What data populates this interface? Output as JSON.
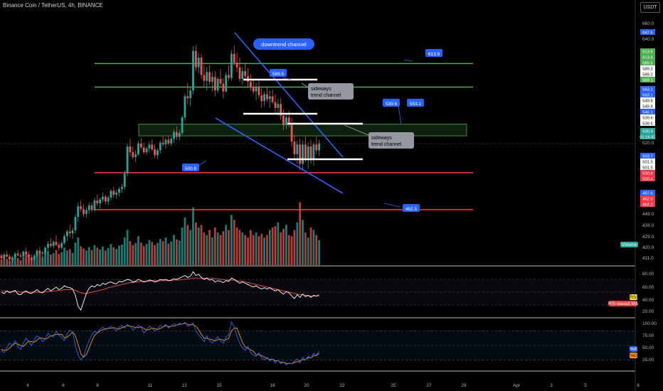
{
  "header": {
    "symbol_title": "Binance Coin / TetherUS, 4h, BINANCE",
    "currency_button": "USDT"
  },
  "colors": {
    "background": "#000000",
    "up": "#26a69a",
    "down": "#ef5350",
    "green_line": "#4caf50",
    "red_line": "#f23645",
    "blue_line": "#2962ff",
    "label_blue": "#2962ff",
    "rsi_line": "#ffffff",
    "rsi_ma": "#ef5350",
    "stoch_k": "#2962ff",
    "stoch_d": "#ff9800"
  },
  "annotations": {
    "downtrend_label": "downtrend channel",
    "sideways_label_1": "sideways trend channel",
    "sideways_label_2": "sideways trend channel",
    "price_tags": [
      "613.9",
      "589.5",
      "539.6",
      "553.1",
      "500.8",
      "462.5"
    ]
  },
  "right_axis": {
    "ticks": [
      "660.0",
      "640.0",
      "520.0",
      "449.0",
      "439.0",
      "429.0",
      "420.0",
      "411.0"
    ],
    "value_tags": [
      {
        "text": "647.6",
        "color": "#2962ff"
      },
      {
        "text": "613.9",
        "color": "#4caf50"
      },
      {
        "text": "613.4",
        "color": "#4caf50"
      },
      {
        "text": "589.5",
        "color": "#4caf50"
      },
      {
        "text": "589.2",
        "color": "#ffffff"
      },
      {
        "text": "589.2",
        "color": "#ffffff"
      },
      {
        "text": "589.1",
        "color": "#4caf50"
      },
      {
        "text": "563.1",
        "color": "#2962ff"
      },
      {
        "text": "563.1",
        "color": "#2962ff"
      },
      {
        "text": "549.8",
        "color": "#ffffff"
      },
      {
        "text": "549.8",
        "color": "#ffffff"
      },
      {
        "text": "546.1",
        "color": "#2962ff"
      },
      {
        "text": "539.6",
        "color": "#ffffff"
      },
      {
        "text": "539.6",
        "color": "#ffffff"
      },
      {
        "text": "530.9",
        "color": "#26a69a"
      },
      {
        "text": "01:16:41",
        "color": "#26a69a"
      },
      {
        "text": "503.7",
        "color": "#2962ff"
      },
      {
        "text": "501.5",
        "color": "#ffffff"
      },
      {
        "text": "501.5",
        "color": "#ffffff"
      },
      {
        "text": "500.8",
        "color": "#f23645"
      },
      {
        "text": "500.4",
        "color": "#f23645"
      },
      {
        "text": "467.6",
        "color": "#2962ff"
      },
      {
        "text": "462.5",
        "color": "#f23645"
      },
      {
        "text": "462.2",
        "color": "#f23645"
      }
    ],
    "volume_label": "Volume"
  },
  "rsi_panel": {
    "ticks": [
      "80.00",
      "60.00",
      "40.00",
      "20.00"
    ],
    "rsi_tag": "RSI",
    "ma_tag": "RSI-based MA"
  },
  "stoch_panel": {
    "ticks": [
      "100.00",
      "75.00",
      "50.00",
      "25.00"
    ],
    "k_tag": "%K",
    "d_tag": "%D"
  },
  "time_axis": {
    "labels": [
      "4",
      "6",
      "8",
      "11",
      "13",
      "15",
      "18",
      "20",
      "22",
      "25",
      "27",
      "29",
      "Apr",
      "3",
      "5",
      "8"
    ]
  },
  "chart_data": {
    "type": "candlestick",
    "title": "Binance Coin / TetherUS, 4h, BINANCE",
    "ylim": [
      405,
      665
    ],
    "horizontal_levels": {
      "green": [
        613.9,
        589.5
      ],
      "red": [
        500.8,
        462.5
      ],
      "white_sideways": [
        589.5,
        549.8,
        539.6,
        501.5
      ],
      "zone": [
        551,
        539
      ]
    },
    "candles": [
      [
        415,
        417,
        410,
        412
      ],
      [
        412,
        418,
        410,
        416
      ],
      [
        416,
        420,
        413,
        414
      ],
      [
        414,
        416,
        409,
        411
      ],
      [
        411,
        415,
        408,
        413
      ],
      [
        413,
        419,
        411,
        417
      ],
      [
        417,
        421,
        414,
        415
      ],
      [
        415,
        418,
        412,
        414
      ],
      [
        414,
        420,
        413,
        419
      ],
      [
        419,
        423,
        415,
        416
      ],
      [
        416,
        419,
        411,
        413
      ],
      [
        413,
        416,
        409,
        411
      ],
      [
        411,
        417,
        410,
        415
      ],
      [
        415,
        422,
        413,
        420
      ],
      [
        420,
        424,
        416,
        417
      ],
      [
        417,
        420,
        413,
        418
      ],
      [
        418,
        425,
        416,
        423
      ],
      [
        423,
        430,
        420,
        427
      ],
      [
        427,
        433,
        423,
        425
      ],
      [
        425,
        431,
        422,
        429
      ],
      [
        429,
        436,
        425,
        426
      ],
      [
        426,
        429,
        420,
        423
      ],
      [
        423,
        430,
        421,
        428
      ],
      [
        428,
        437,
        426,
        435
      ],
      [
        435,
        442,
        430,
        440
      ],
      [
        440,
        447,
        434,
        438
      ],
      [
        438,
        444,
        432,
        441
      ],
      [
        441,
        458,
        438,
        455
      ],
      [
        455,
        470,
        450,
        466
      ],
      [
        466,
        472,
        460,
        463
      ],
      [
        463,
        468,
        455,
        458
      ],
      [
        458,
        465,
        454,
        462
      ],
      [
        462,
        470,
        458,
        467
      ],
      [
        467,
        470,
        460,
        462
      ],
      [
        462,
        475,
        460,
        472
      ],
      [
        472,
        478,
        466,
        469
      ],
      [
        469,
        475,
        464,
        473
      ],
      [
        473,
        480,
        470,
        476
      ],
      [
        476,
        478,
        468,
        471
      ],
      [
        471,
        477,
        467,
        475
      ],
      [
        475,
        484,
        472,
        482
      ],
      [
        482,
        486,
        475,
        478
      ],
      [
        478,
        483,
        474,
        480
      ],
      [
        480,
        486,
        476,
        484
      ],
      [
        484,
        489,
        480,
        486
      ],
      [
        486,
        503,
        483,
        500
      ],
      [
        500,
        531,
        497,
        528
      ],
      [
        528,
        536,
        518,
        522
      ],
      [
        522,
        528,
        515,
        517
      ],
      [
        517,
        524,
        512,
        520
      ],
      [
        520,
        534,
        518,
        531
      ],
      [
        531,
        537,
        525,
        527
      ],
      [
        527,
        532,
        520,
        522
      ],
      [
        522,
        528,
        519,
        526
      ],
      [
        526,
        533,
        522,
        530
      ],
      [
        530,
        535,
        523,
        525
      ],
      [
        525,
        530,
        516,
        519
      ],
      [
        519,
        526,
        515,
        524
      ],
      [
        524,
        534,
        521,
        532
      ],
      [
        532,
        539,
        528,
        530
      ],
      [
        530,
        537,
        526,
        535
      ],
      [
        535,
        539,
        529,
        531
      ],
      [
        531,
        538,
        528,
        536
      ],
      [
        536,
        546,
        532,
        543
      ],
      [
        543,
        549,
        535,
        538
      ],
      [
        538,
        545,
        534,
        542
      ],
      [
        542,
        560,
        540,
        558
      ],
      [
        558,
        583,
        555,
        580
      ],
      [
        580,
        594,
        572,
        578
      ],
      [
        578,
        590,
        570,
        586
      ],
      [
        586,
        632,
        582,
        627
      ],
      [
        627,
        633,
        606,
        610
      ],
      [
        610,
        625,
        604,
        620
      ],
      [
        620,
        624,
        598,
        602
      ],
      [
        602,
        612,
        590,
        596
      ],
      [
        596,
        610,
        586,
        605
      ],
      [
        605,
        612,
        592,
        595
      ],
      [
        595,
        605,
        585,
        600
      ],
      [
        600,
        606,
        580,
        586
      ],
      [
        586,
        600,
        583,
        598
      ],
      [
        598,
        608,
        590,
        593
      ],
      [
        593,
        599,
        578,
        585
      ],
      [
        585,
        605,
        584,
        602
      ],
      [
        602,
        612,
        596,
        599
      ],
      [
        599,
        628,
        596,
        624
      ],
      [
        624,
        632,
        612,
        615
      ],
      [
        615,
        625,
        605,
        610
      ],
      [
        610,
        620,
        595,
        598
      ],
      [
        598,
        610,
        592,
        606
      ],
      [
        606,
        614,
        598,
        601
      ],
      [
        601,
        609,
        590,
        595
      ],
      [
        595,
        603,
        586,
        590
      ],
      [
        590,
        598,
        582,
        585
      ],
      [
        585,
        594,
        576,
        590
      ],
      [
        590,
        596,
        578,
        581
      ],
      [
        581,
        588,
        568,
        575
      ],
      [
        575,
        585,
        570,
        582
      ],
      [
        582,
        590,
        574,
        577
      ],
      [
        577,
        586,
        568,
        580
      ],
      [
        580,
        587,
        572,
        574
      ],
      [
        574,
        582,
        562,
        568
      ],
      [
        568,
        577,
        560,
        572
      ],
      [
        572,
        578,
        556,
        560
      ],
      [
        560,
        566,
        545,
        550
      ],
      [
        550,
        562,
        546,
        558
      ],
      [
        558,
        565,
        548,
        552
      ],
      [
        552,
        558,
        528,
        533
      ],
      [
        533,
        540,
        513,
        520
      ],
      [
        520,
        534,
        510,
        530
      ],
      [
        530,
        536,
        503,
        510
      ],
      [
        510,
        534,
        503,
        530
      ],
      [
        530,
        538,
        512,
        516
      ],
      [
        516,
        532,
        505,
        528
      ],
      [
        528,
        535,
        510,
        514
      ],
      [
        514,
        532,
        508,
        530
      ],
      [
        530,
        538,
        520,
        524
      ],
      [
        524,
        535,
        518,
        531
      ]
    ],
    "volume": [
      22,
      30,
      25,
      18,
      26,
      35,
      28,
      20,
      32,
      40,
      30,
      24,
      28,
      38,
      45,
      33,
      50,
      56,
      42,
      48,
      60,
      45,
      52,
      70,
      58,
      64,
      49,
      90,
      110,
      75,
      66,
      58,
      72,
      60,
      80,
      70,
      62,
      74,
      58,
      68,
      84,
      71,
      64,
      78,
      82,
      110,
      140,
      96,
      80,
      88,
      115,
      90,
      76,
      84,
      100,
      92,
      80,
      88,
      104,
      96,
      110,
      86,
      94,
      120,
      102,
      98,
      150,
      190,
      160,
      140,
      230,
      170,
      150,
      160,
      130,
      120,
      140,
      110,
      150,
      130,
      120,
      135,
      160,
      140,
      200,
      180,
      150,
      140,
      130,
      120,
      110,
      140,
      120,
      130,
      115,
      125,
      110,
      120,
      140,
      150,
      155,
      170,
      130,
      145,
      160,
      120,
      115,
      140,
      170,
      250,
      180,
      130,
      110,
      150,
      140,
      120,
      100,
      115
    ],
    "rsi": [
      50,
      48,
      52,
      49,
      51,
      53,
      47,
      46,
      50,
      52,
      49,
      48,
      51,
      54,
      50,
      49,
      53,
      56,
      52,
      55,
      58,
      54,
      56,
      60,
      58,
      57,
      55,
      45,
      28,
      22,
      35,
      48,
      56,
      60,
      58,
      62,
      60,
      64,
      62,
      65,
      66,
      64,
      63,
      67,
      66,
      68,
      70,
      69,
      66,
      67,
      70,
      68,
      66,
      67,
      69,
      68,
      66,
      67,
      70,
      69,
      70,
      68,
      69,
      71,
      70,
      72,
      74,
      76,
      73,
      75,
      82,
      76,
      78,
      73,
      70,
      72,
      69,
      70,
      66,
      68,
      67,
      65,
      68,
      67,
      72,
      70,
      67,
      64,
      66,
      64,
      62,
      60,
      58,
      60,
      57,
      55,
      57,
      55,
      57,
      54,
      52,
      54,
      50,
      47,
      51,
      49,
      44,
      40,
      46,
      42,
      47,
      43,
      45,
      42,
      45,
      44,
      46
    ],
    "rsi_ma": [
      52,
      52,
      51,
      51,
      51,
      51,
      51,
      50,
      50,
      50,
      50,
      50,
      50,
      50,
      50,
      50,
      51,
      51,
      51,
      52,
      52,
      53,
      53,
      54,
      54,
      54,
      54,
      53,
      51,
      49,
      48,
      48,
      49,
      50,
      51,
      52,
      53,
      54,
      55,
      57,
      58,
      59,
      60,
      61,
      62,
      63,
      64,
      65,
      65,
      66,
      66,
      67,
      67,
      67,
      67,
      68,
      68,
      68,
      68,
      68,
      68,
      68,
      68,
      69,
      69,
      69,
      70,
      70,
      71,
      71,
      72,
      72,
      72,
      72,
      72,
      72,
      72,
      72,
      71,
      71,
      70,
      70,
      69,
      69,
      69,
      69,
      68,
      67,
      67,
      66,
      65,
      64,
      63,
      62,
      61,
      60,
      59,
      58,
      57,
      56,
      55,
      54,
      53,
      52,
      51,
      50,
      49,
      48,
      47,
      46,
      46,
      45,
      45,
      44,
      44,
      44,
      44
    ],
    "stoch_k": [
      40,
      35,
      45,
      55,
      50,
      60,
      48,
      42,
      55,
      65,
      58,
      50,
      62,
      70,
      66,
      58,
      64,
      75,
      70,
      68,
      80,
      72,
      66,
      60,
      74,
      82,
      78,
      50,
      30,
      20,
      28,
      45,
      60,
      72,
      80,
      76,
      84,
      88,
      82,
      86,
      90,
      84,
      80,
      88,
      92,
      86,
      94,
      90,
      82,
      86,
      92,
      88,
      76,
      82,
      90,
      86,
      80,
      84,
      92,
      88,
      94,
      86,
      90,
      95,
      92,
      96,
      94,
      98,
      90,
      92,
      97,
      80,
      72,
      66,
      58,
      70,
      60,
      55,
      62,
      68,
      60,
      55,
      68,
      72,
      99,
      88,
      70,
      55,
      45,
      40,
      48,
      36,
      30,
      28,
      35,
      24,
      20,
      26,
      18,
      22,
      14,
      20,
      12,
      16,
      10,
      14,
      12,
      18,
      22,
      14,
      26,
      20,
      28,
      24,
      34,
      30,
      38
    ],
    "stoch_d": [
      42,
      40,
      40,
      45,
      50,
      55,
      53,
      50,
      48,
      54,
      59,
      58,
      57,
      61,
      66,
      65,
      63,
      66,
      70,
      71,
      73,
      73,
      73,
      66,
      67,
      72,
      78,
      70,
      53,
      33,
      26,
      31,
      44,
      59,
      71,
      76,
      80,
      83,
      85,
      85,
      86,
      87,
      85,
      84,
      87,
      89,
      91,
      90,
      89,
      87,
      87,
      89,
      85,
      82,
      83,
      86,
      85,
      83,
      85,
      88,
      91,
      89,
      90,
      90,
      92,
      94,
      94,
      96,
      94,
      93,
      93,
      90,
      83,
      73,
      65,
      65,
      63,
      62,
      59,
      62,
      63,
      61,
      62,
      65,
      80,
      86,
      86,
      71,
      57,
      47,
      44,
      41,
      38,
      31,
      31,
      29,
      26,
      23,
      21,
      22,
      18,
      19,
      15,
      16,
      13,
      13,
      12,
      15,
      17,
      18,
      21,
      20,
      25,
      24,
      29,
      29,
      34
    ]
  }
}
